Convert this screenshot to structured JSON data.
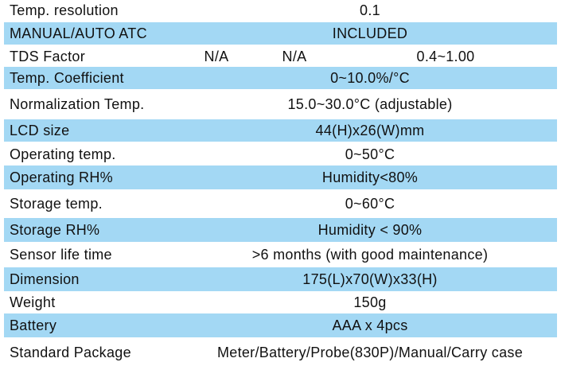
{
  "table": {
    "rows": [
      [
        "Temp. resolution",
        "0.1"
      ],
      [
        "MANUAL/AUTO ATC",
        "INCLUDED"
      ],
      [
        "TDS Factor",
        "N/A",
        "N/A",
        "0.4~1.00"
      ],
      [
        "Temp. Coefficient",
        "0~10.0%/°C"
      ],
      [
        "Normalization Temp.",
        "15.0~30.0°C (adjustable)"
      ],
      [
        "LCD size",
        "44(H)x26(W)mm"
      ],
      [
        "Operating temp.",
        "0~50°C"
      ],
      [
        "Operating RH%",
        "Humidity<80%"
      ],
      [
        "Storage temp.",
        "0~60°C"
      ],
      [
        "Storage RH%",
        "Humidity < 90%"
      ],
      [
        "Sensor life time",
        ">6 months (with good maintenance)"
      ],
      [
        "Dimension",
        "175(L)x70(W)x33(H)"
      ],
      [
        "Weight",
        "150g"
      ],
      [
        "Battery",
        "AAA x 4pcs"
      ],
      [
        "Standard Package",
        "Meter/Battery/Probe(830P)/Manual/Carry case"
      ]
    ]
  }
}
